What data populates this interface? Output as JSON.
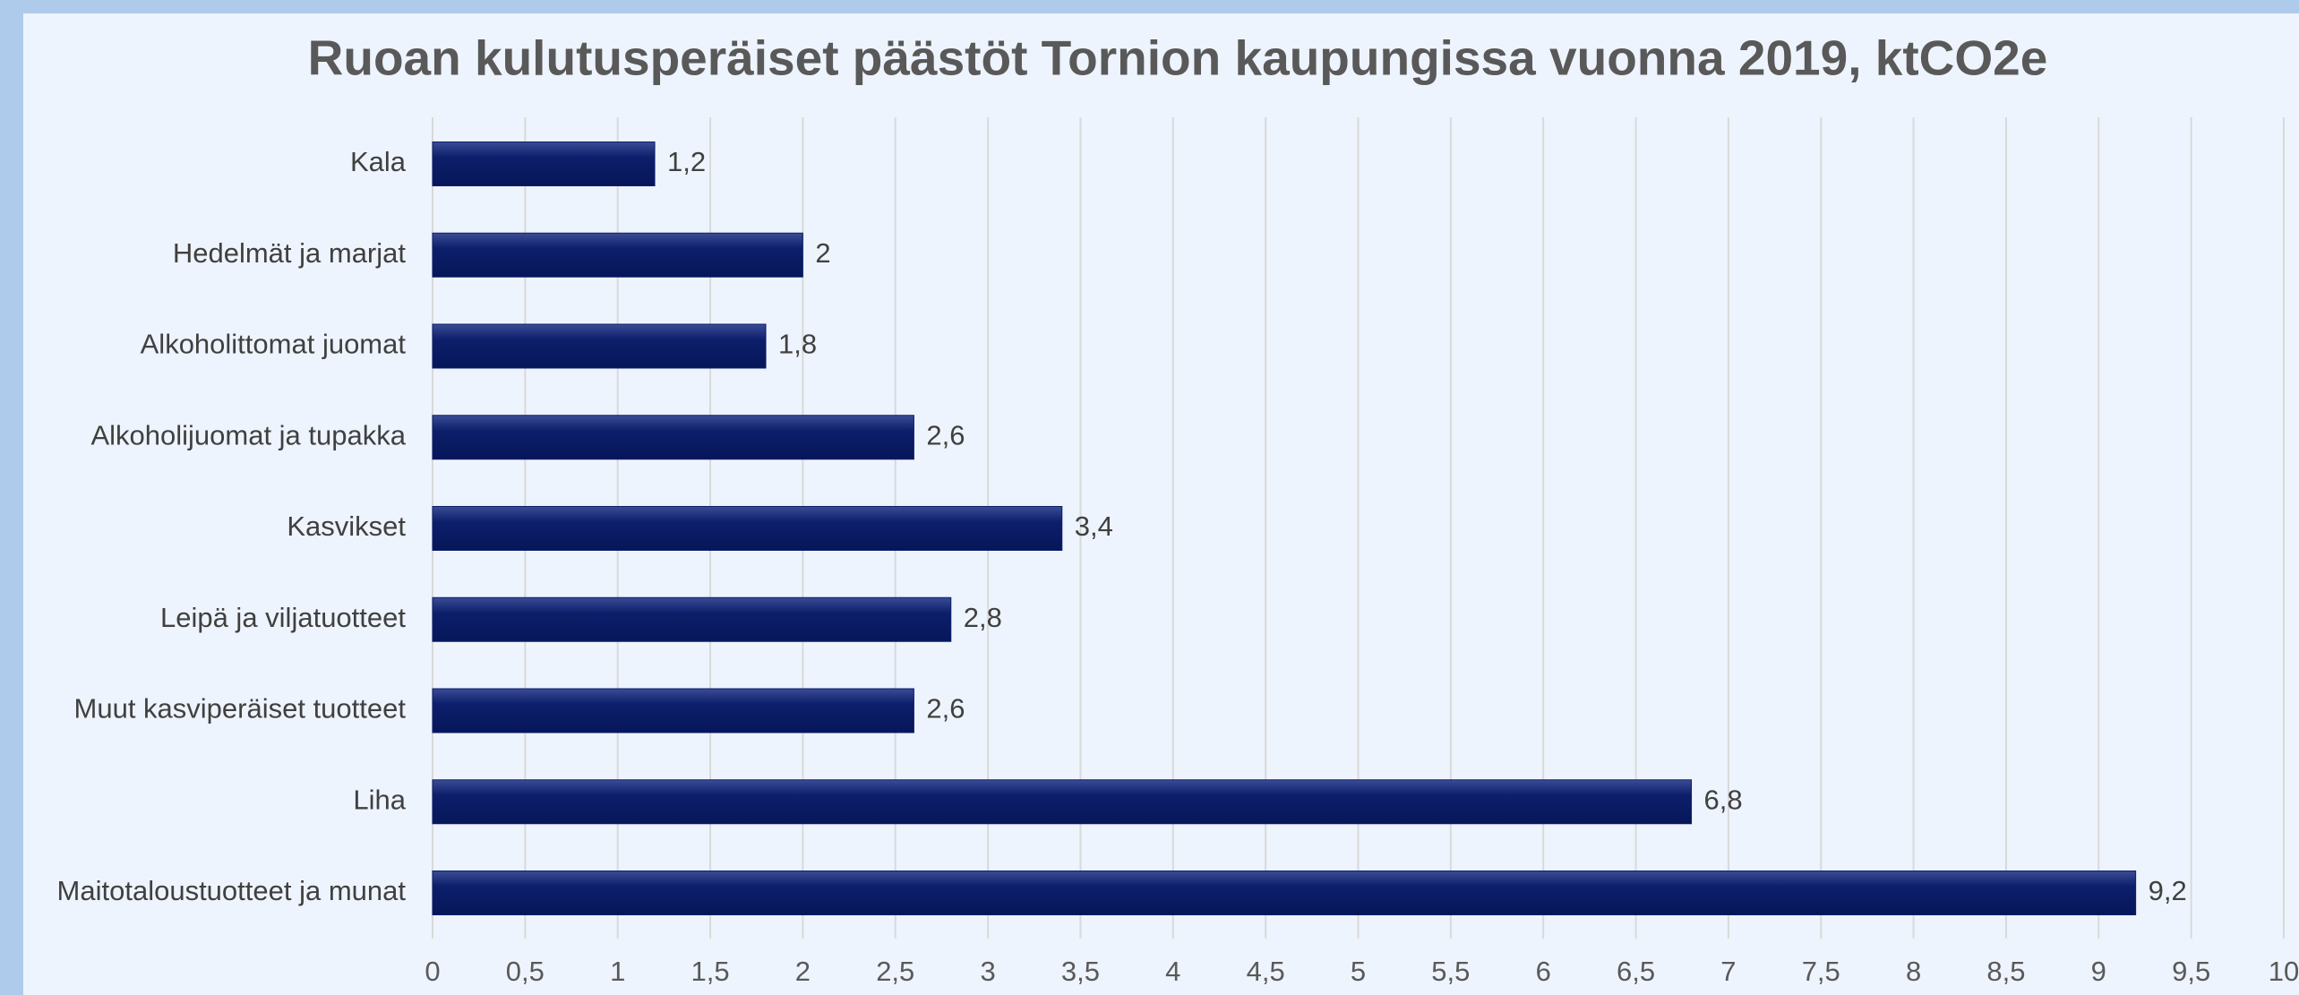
{
  "chart_data": {
    "type": "bar",
    "orientation": "horizontal",
    "title": "Ruoan kulutusperäiset päästöt Tornion kaupungissa vuonna 2019, ktCO2e",
    "categories": [
      "Kala",
      "Hedelmät ja marjat",
      "Alkoholittomat juomat",
      "Alkoholijuomat ja tupakka",
      "Kasvikset",
      "Leipä ja viljatuotteet",
      "Muut kasviperäiset tuotteet",
      "Liha",
      "Maitotaloustuotteet ja munat"
    ],
    "values": [
      1.2,
      2,
      1.8,
      2.6,
      3.4,
      2.8,
      2.6,
      6.8,
      9.2
    ],
    "value_labels": [
      "1,2",
      "2",
      "1,8",
      "2,6",
      "3,4",
      "2,8",
      "2,6",
      "6,8",
      "9,2"
    ],
    "color": "#0d1f6b",
    "xlim": [
      0,
      10
    ],
    "xticks": [
      0,
      {
        "value": 0.5,
        "label": "0,5"
      },
      1,
      {
        "value": 1.5,
        "label": "1,5"
      },
      2,
      {
        "value": 2.5,
        "label": "2,5"
      },
      3,
      {
        "value": 3.5,
        "label": "3,5"
      },
      4,
      {
        "value": 4.5,
        "label": "4,5"
      },
      5,
      {
        "value": 5.5,
        "label": "5,5"
      },
      6,
      {
        "value": 6.5,
        "label": "6,5"
      },
      7,
      {
        "value": 7.5,
        "label": "7,5"
      },
      8,
      {
        "value": 8.5,
        "label": "8,5"
      },
      9,
      {
        "value": 9.5,
        "label": "9,5"
      },
      10
    ],
    "grid": true
  }
}
